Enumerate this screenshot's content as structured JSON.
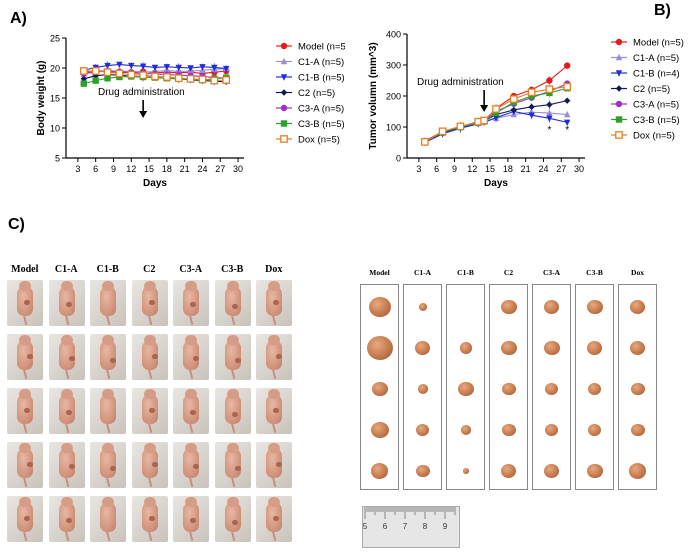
{
  "panels": {
    "a_label": "A)",
    "b_label": "B)",
    "c_label": "C)"
  },
  "chart_data": [
    {
      "type": "line",
      "title": "",
      "xlabel": "Days",
      "ylabel": "Body weight (g)",
      "xlim": [
        1,
        31
      ],
      "ylim": [
        5,
        25
      ],
      "xticks": [
        3,
        6,
        9,
        12,
        15,
        18,
        21,
        24,
        27,
        30
      ],
      "yticks": [
        5,
        10,
        15,
        20,
        25
      ],
      "annotation": "Drug administration",
      "annotation_x": 14,
      "x": [
        4,
        6,
        8,
        10,
        12,
        14,
        16,
        18,
        20,
        22,
        24,
        26,
        28
      ],
      "series": [
        {
          "name": "Model (n=5)",
          "color": "#e41a1c",
          "marker": "circle",
          "values": [
            19.3,
            19.6,
            19.4,
            19.2,
            19.3,
            19.4,
            19.2,
            19.3,
            19.2,
            19.3,
            19.1,
            19.3,
            19.5
          ]
        },
        {
          "name": "C1-A (n=5)",
          "color": "#9b8ce0",
          "marker": "triangle-up",
          "values": [
            19.0,
            19.3,
            19.6,
            19.4,
            19.5,
            19.3,
            19.4,
            19.6,
            19.4,
            19.5,
            19.6,
            19.8,
            19.9
          ]
        },
        {
          "name": "C1-B (n=5)",
          "color": "#1f2ed8",
          "marker": "triangle-down",
          "values": [
            19.6,
            20.1,
            20.4,
            20.6,
            20.4,
            20.3,
            20.1,
            20.2,
            20.1,
            20.0,
            20.2,
            20.1,
            19.9
          ]
        },
        {
          "name": "C2 (n=5)",
          "color": "#111a5c",
          "marker": "diamond",
          "values": [
            18.2,
            18.7,
            18.9,
            18.8,
            18.6,
            18.5,
            18.4,
            18.3,
            18.2,
            18.0,
            17.9,
            17.8,
            17.7
          ]
        },
        {
          "name": "C3-A (n=5)",
          "color": "#9b33c7",
          "marker": "circle",
          "values": [
            19.1,
            19.4,
            19.5,
            19.4,
            19.2,
            19.1,
            19.0,
            18.9,
            18.8,
            18.7,
            18.6,
            18.4,
            18.3
          ]
        },
        {
          "name": "C3-B (n=5)",
          "color": "#2ca02c",
          "marker": "square",
          "values": [
            17.4,
            17.9,
            18.3,
            18.5,
            18.6,
            18.5,
            18.4,
            18.3,
            18.2,
            18.1,
            18.0,
            18.2,
            18.4
          ]
        },
        {
          "name": "Dox (n=5)",
          "color": "#e67e22",
          "marker": "open-square",
          "values": [
            19.5,
            19.5,
            19.3,
            19.1,
            18.9,
            18.8,
            18.6,
            18.5,
            18.3,
            18.2,
            18.1,
            17.9,
            18.0
          ]
        }
      ]
    },
    {
      "type": "line",
      "title": "",
      "xlabel": "Days",
      "ylabel": "Tumor volumn (mm^3)",
      "xlim": [
        1,
        31
      ],
      "ylim": [
        0,
        400
      ],
      "xticks": [
        3,
        6,
        9,
        12,
        15,
        18,
        21,
        24,
        27,
        30
      ],
      "yticks": [
        0,
        100,
        200,
        300,
        400
      ],
      "annotation": "Drug administration",
      "annotation_x": 14,
      "significance_marks": [
        "*",
        "*"
      ],
      "x": [
        4,
        7,
        10,
        13,
        14,
        16,
        19,
        22,
        25,
        28
      ],
      "series": [
        {
          "name": "Model (n=5)",
          "color": "#e41a1c",
          "marker": "circle",
          "values": [
            55,
            85,
            100,
            118,
            120,
            160,
            200,
            220,
            250,
            298
          ]
        },
        {
          "name": "C1-A (n=5)",
          "color": "#9b8ce0",
          "marker": "triangle-up",
          "values": [
            52,
            80,
            98,
            112,
            118,
            128,
            140,
            148,
            145,
            140
          ]
        },
        {
          "name": "C1-B (n=4)",
          "color": "#1f2ed8",
          "marker": "triangle-down",
          "values": [
            50,
            78,
            96,
            110,
            115,
            130,
            150,
            138,
            128,
            115
          ]
        },
        {
          "name": "C2 (n=5)",
          "color": "#111a5c",
          "marker": "diamond",
          "values": [
            53,
            82,
            99,
            115,
            119,
            140,
            155,
            165,
            172,
            185
          ]
        },
        {
          "name": "C3-A (n=5)",
          "color": "#9b33c7",
          "marker": "circle",
          "values": [
            54,
            84,
            101,
            116,
            120,
            150,
            175,
            195,
            215,
            240
          ]
        },
        {
          "name": "C3-B (n=5)",
          "color": "#2ca02c",
          "marker": "square",
          "values": [
            51,
            83,
            100,
            114,
            118,
            145,
            180,
            200,
            210,
            225
          ]
        },
        {
          "name": "Dox (n=5)",
          "color": "#e67e22",
          "marker": "open-square",
          "values": [
            52,
            86,
            102,
            117,
            121,
            158,
            190,
            212,
            222,
            230
          ]
        }
      ]
    }
  ],
  "photos": {
    "mice_headers": [
      "Model",
      "C1-A",
      "C1-B",
      "C2",
      "C3-A",
      "C3-B",
      "Dox"
    ],
    "tumor_headers": [
      "Model",
      "C1-A",
      "C1-B",
      "C2",
      "C3-A",
      "C3-B",
      "Dox"
    ],
    "ruler_numbers": [
      "5",
      "6",
      "7",
      "8",
      "9"
    ]
  }
}
